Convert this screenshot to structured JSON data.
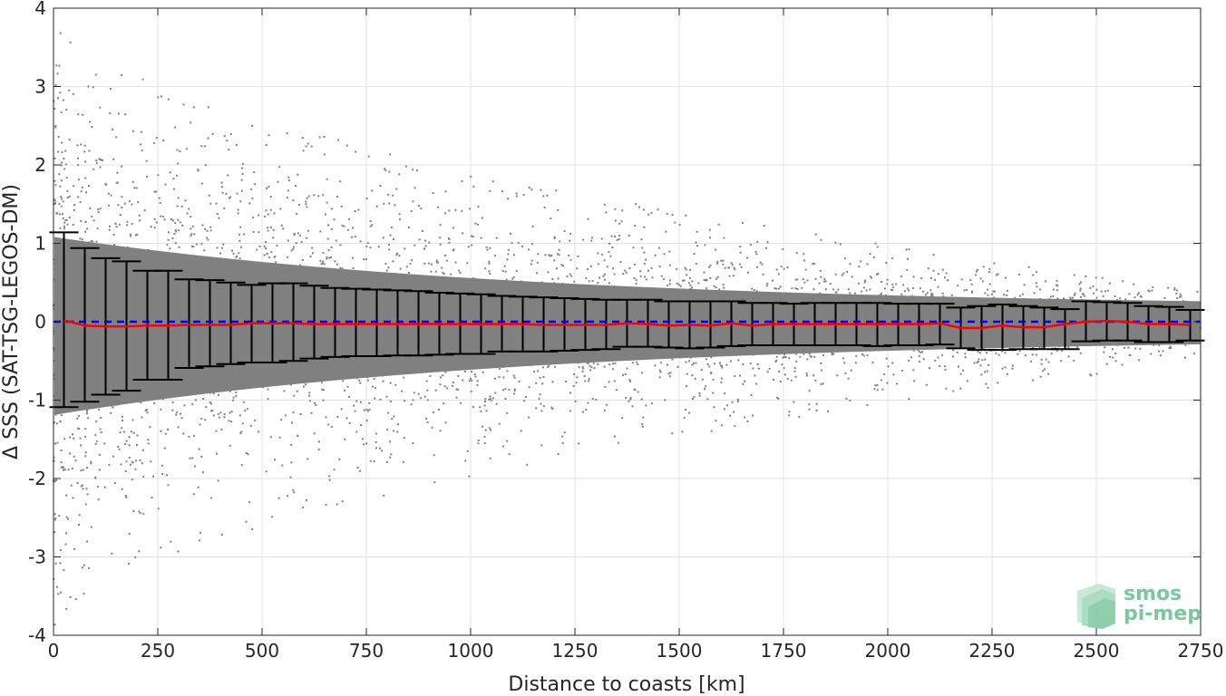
{
  "chart_data": {
    "type": "scatter",
    "title": "",
    "xlabel": "Distance to coasts [km]",
    "ylabel": "Δ SSS (SAT-TSG-LEGOS-DM)",
    "xlim": [
      0,
      2750
    ],
    "ylim": [
      -4,
      4
    ],
    "x_ticks": [
      0,
      250,
      500,
      750,
      1000,
      1250,
      1500,
      1750,
      2000,
      2250,
      2500,
      2750
    ],
    "y_ticks": [
      -4,
      -3,
      -2,
      -1,
      0,
      1,
      2,
      3,
      4
    ],
    "grid": true,
    "colors": {
      "scatter": "#808080",
      "mean": "#ff0000",
      "zero_line": "#0000ff",
      "error_bars": "#000000",
      "logo": "#7cc7a0"
    },
    "series": [
      {
        "kind": "mean_line",
        "x": [
          25,
          75,
          125,
          175,
          225,
          275,
          325,
          375,
          425,
          475,
          525,
          575,
          625,
          675,
          725,
          775,
          825,
          875,
          925,
          975,
          1025,
          1075,
          1125,
          1175,
          1225,
          1275,
          1325,
          1375,
          1425,
          1475,
          1525,
          1575,
          1625,
          1675,
          1725,
          1775,
          1825,
          1875,
          1925,
          1975,
          2025,
          2075,
          2125,
          2175,
          2225,
          2275,
          2325,
          2375,
          2425,
          2475,
          2525,
          2575,
          2625,
          2675,
          2725
        ],
        "y": [
          0.02,
          -0.05,
          -0.06,
          -0.06,
          -0.05,
          -0.05,
          -0.04,
          -0.04,
          -0.04,
          -0.02,
          -0.02,
          -0.02,
          -0.03,
          -0.03,
          -0.03,
          -0.03,
          -0.03,
          -0.03,
          -0.03,
          -0.03,
          -0.03,
          -0.03,
          -0.03,
          -0.04,
          -0.04,
          -0.04,
          -0.04,
          -0.02,
          -0.03,
          -0.05,
          -0.04,
          -0.05,
          -0.02,
          -0.05,
          -0.03,
          -0.03,
          -0.03,
          -0.03,
          -0.03,
          -0.03,
          -0.03,
          -0.03,
          -0.02,
          -0.08,
          -0.08,
          -0.05,
          -0.07,
          -0.07,
          -0.03,
          0.0,
          0.01,
          0.0,
          -0.03,
          -0.03,
          -0.04
        ]
      },
      {
        "kind": "zero_reference",
        "x": [
          0,
          2750
        ],
        "y": [
          0,
          0
        ]
      },
      {
        "kind": "error_bars",
        "x": [
          25,
          75,
          125,
          175,
          225,
          275,
          325,
          375,
          425,
          475,
          525,
          575,
          625,
          675,
          725,
          775,
          825,
          875,
          925,
          975,
          1025,
          1075,
          1125,
          1175,
          1225,
          1275,
          1325,
          1375,
          1425,
          1475,
          1525,
          1575,
          1625,
          1675,
          1725,
          1775,
          1825,
          1875,
          1925,
          1975,
          2025,
          2075,
          2125,
          2175,
          2225,
          2275,
          2325,
          2375,
          2425,
          2475,
          2525,
          2575,
          2625,
          2675,
          2725
        ],
        "upper": [
          1.14,
          0.94,
          0.81,
          0.77,
          0.65,
          0.65,
          0.54,
          0.53,
          0.5,
          0.47,
          0.49,
          0.49,
          0.46,
          0.43,
          0.42,
          0.41,
          0.4,
          0.39,
          0.37,
          0.36,
          0.35,
          0.33,
          0.32,
          0.31,
          0.3,
          0.29,
          0.28,
          0.28,
          0.28,
          0.26,
          0.26,
          0.26,
          0.26,
          0.24,
          0.24,
          0.23,
          0.24,
          0.24,
          0.24,
          0.24,
          0.23,
          0.23,
          0.23,
          0.18,
          0.2,
          0.22,
          0.2,
          0.18,
          0.16,
          0.26,
          0.25,
          0.24,
          0.2,
          0.19,
          0.15
        ],
        "lower": [
          -1.09,
          -1.02,
          -0.93,
          -0.88,
          -0.74,
          -0.74,
          -0.59,
          -0.57,
          -0.54,
          -0.52,
          -0.52,
          -0.5,
          -0.47,
          -0.45,
          -0.44,
          -0.44,
          -0.43,
          -0.43,
          -0.42,
          -0.41,
          -0.41,
          -0.38,
          -0.38,
          -0.38,
          -0.37,
          -0.36,
          -0.35,
          -0.32,
          -0.32,
          -0.33,
          -0.34,
          -0.33,
          -0.31,
          -0.3,
          -0.3,
          -0.3,
          -0.3,
          -0.3,
          -0.3,
          -0.31,
          -0.3,
          -0.3,
          -0.29,
          -0.34,
          -0.36,
          -0.36,
          -0.35,
          -0.35,
          -0.35,
          -0.25,
          -0.24,
          -0.24,
          -0.26,
          -0.26,
          -0.24
        ]
      },
      {
        "kind": "scatter_cloud",
        "x": [
          0,
          2750
        ],
        "description_free_spread_upper": [
          4,
          0.4
        ],
        "description_free_spread_lower": [
          -4,
          -0.5
        ]
      }
    ]
  },
  "logo": {
    "line1": "smos",
    "line2": "pi-mep"
  }
}
